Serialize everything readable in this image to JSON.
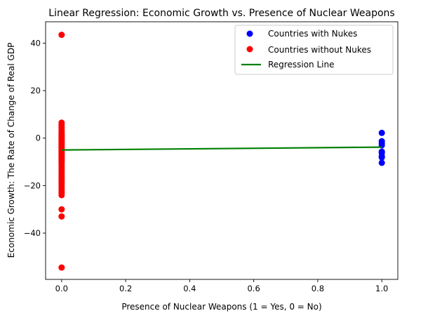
{
  "chart_data": {
    "type": "scatter",
    "title": "Linear Regression: Economic Growth vs. Presence of Nuclear Weapons",
    "xlabel": "Presence of Nuclear Weapons (1 = Yes, 0 = No)",
    "ylabel": "Economic Growth: The Rate of Change of Real GDP",
    "xlim": [
      -0.05,
      1.05
    ],
    "ylim": [
      -59.5,
      49.0
    ],
    "xticks": [
      0.0,
      0.2,
      0.4,
      0.6,
      0.8,
      1.0
    ],
    "xtick_labels": [
      "0.0",
      "0.2",
      "0.4",
      "0.6",
      "0.8",
      "1.0"
    ],
    "yticks": [
      -40,
      -20,
      0,
      20,
      40
    ],
    "ytick_labels": [
      "−40",
      "−20",
      "0",
      "20",
      "40"
    ],
    "grid": false,
    "legend_position": "top-right",
    "series": [
      {
        "name": "Countries with Nukes",
        "kind": "scatter",
        "color": "#0000ff",
        "x": [
          1,
          1,
          1,
          1,
          1,
          1,
          1,
          1,
          1
        ],
        "y": [
          2.2,
          -1.3,
          -2.2,
          -3.0,
          -5.7,
          -6.2,
          -7.6,
          -8.1,
          -10.4
        ]
      },
      {
        "name": "Countries without Nukes",
        "kind": "scatter",
        "color": "#ff0000",
        "x": [
          0,
          0,
          0,
          0,
          0,
          0,
          0,
          0,
          0,
          0,
          0,
          0,
          0,
          0,
          0,
          0,
          0,
          0,
          0,
          0,
          0,
          0,
          0,
          0,
          0,
          0,
          0,
          0,
          0,
          0,
          0,
          0,
          0,
          0,
          0,
          0,
          0,
          0,
          0,
          0,
          0,
          0,
          0,
          0,
          0,
          0,
          0,
          0
        ],
        "y": [
          43.5,
          6.5,
          5.5,
          4.5,
          3.5,
          2.8,
          2.0,
          1.5,
          1.0,
          0.5,
          0.0,
          -0.5,
          -1.0,
          -1.5,
          -2.0,
          -2.5,
          -3.0,
          -3.5,
          -4.0,
          -4.5,
          -5.0,
          -5.5,
          -6.0,
          -6.5,
          -7.0,
          -7.5,
          -8.0,
          -8.5,
          -9.0,
          -9.5,
          -10.0,
          -11.0,
          -12.0,
          -13.0,
          -14.0,
          -15.0,
          -16.0,
          -17.0,
          -18.0,
          -19.0,
          -21.0,
          -22.0,
          -23.0,
          -24.0,
          -30.0,
          -33.0,
          -54.5,
          -20.0
        ]
      },
      {
        "name": "Regression Line",
        "kind": "line",
        "color": "#008000",
        "x": [
          0,
          1
        ],
        "y": [
          -5.0,
          -3.8
        ]
      }
    ]
  }
}
